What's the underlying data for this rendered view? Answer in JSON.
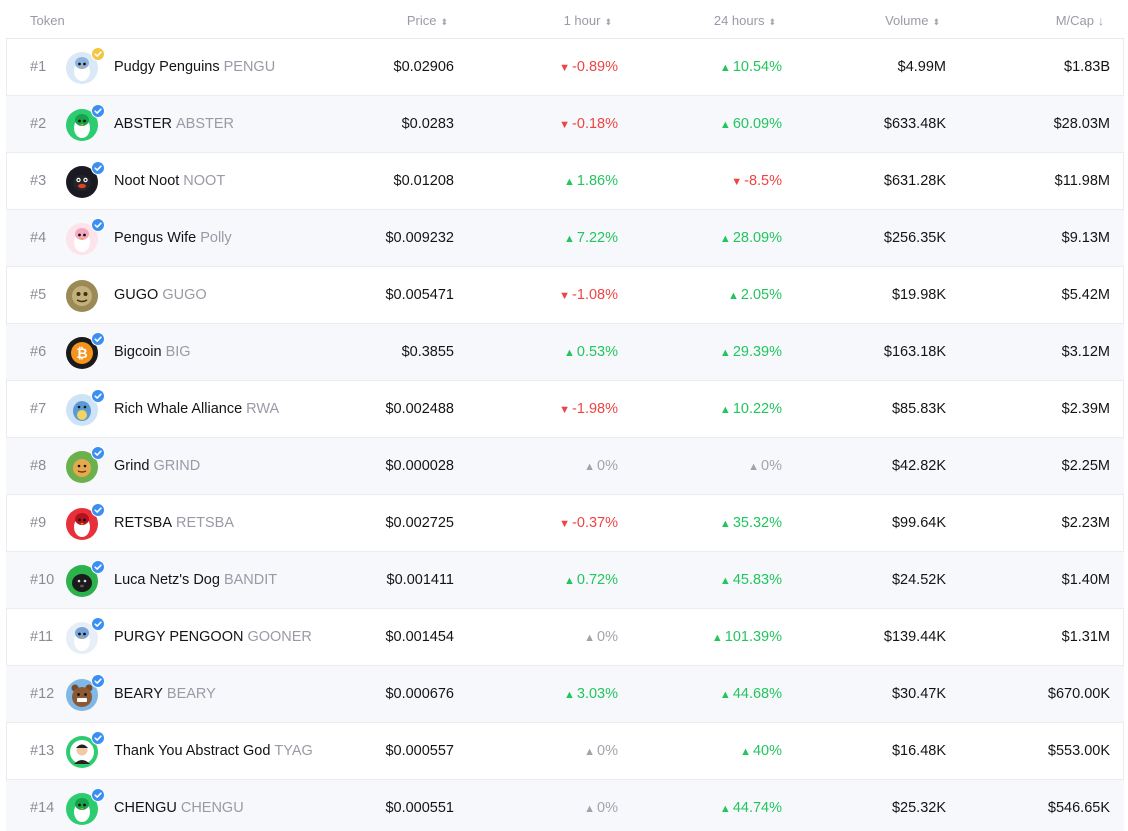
{
  "header": {
    "token": "Token",
    "price": "Price",
    "h1": "1 hour",
    "h24": "24 hours",
    "volume": "Volume",
    "mcap": "M/Cap",
    "sort_icon": "⬍",
    "sort_active_icon": "↓"
  },
  "colors": {
    "up": "#22c55e",
    "down": "#ef4444",
    "flat": "#a3a3ad",
    "verified": "#3b8ff3",
    "verified_gold": "#f5c542"
  },
  "rows": [
    {
      "rank": "#1",
      "name": "Pudgy Penguins",
      "symbol": "PENGU",
      "price": "$0.02906",
      "h1": "-0.89%",
      "h1_dir": "down",
      "h24": "10.54%",
      "h24_dir": "up",
      "volume": "$4.99M",
      "mcap": "$1.83B",
      "avatar_icon": "penguin-icon",
      "avatar_bg": "#dbe8f7",
      "badge": "gold"
    },
    {
      "rank": "#2",
      "name": "ABSTER",
      "symbol": "ABSTER",
      "price": "$0.0283",
      "h1": "-0.18%",
      "h1_dir": "down",
      "h24": "60.09%",
      "h24_dir": "up",
      "volume": "$633.48K",
      "mcap": "$28.03M",
      "avatar_icon": "green-penguin-icon",
      "avatar_bg": "#2ecc71",
      "badge": "blue"
    },
    {
      "rank": "#3",
      "name": "Noot Noot",
      "symbol": "NOOT",
      "price": "$0.01208",
      "h1": "1.86%",
      "h1_dir": "up",
      "h24": "-8.5%",
      "h24_dir": "down",
      "volume": "$631.28K",
      "mcap": "$11.98M",
      "avatar_icon": "noot-penguin-icon",
      "avatar_bg": "#1a1a22",
      "badge": "blue"
    },
    {
      "rank": "#4",
      "name": "Pengus Wife",
      "symbol": "Polly",
      "price": "$0.009232",
      "h1": "7.22%",
      "h1_dir": "up",
      "h24": "28.09%",
      "h24_dir": "up",
      "volume": "$256.35K",
      "mcap": "$9.13M",
      "avatar_icon": "pink-penguin-icon",
      "avatar_bg": "#fde3ea",
      "badge": "blue"
    },
    {
      "rank": "#5",
      "name": "GUGO",
      "symbol": "GUGO",
      "price": "$0.005471",
      "h1": "-1.08%",
      "h1_dir": "down",
      "h24": "2.05%",
      "h24_dir": "up",
      "volume": "$19.98K",
      "mcap": "$5.42M",
      "avatar_icon": "gugo-icon",
      "avatar_bg": "#9b8a55",
      "badge": "none"
    },
    {
      "rank": "#6",
      "name": "Bigcoin",
      "symbol": "BIG",
      "price": "$0.3855",
      "h1": "0.53%",
      "h1_dir": "up",
      "h24": "29.39%",
      "h24_dir": "up",
      "volume": "$163.18K",
      "mcap": "$3.12M",
      "avatar_icon": "bitcoin-icon",
      "avatar_bg": "#1a1a1a",
      "badge": "blue"
    },
    {
      "rank": "#7",
      "name": "Rich Whale Alliance",
      "symbol": "RWA",
      "price": "$0.002488",
      "h1": "-1.98%",
      "h1_dir": "down",
      "h24": "10.22%",
      "h24_dir": "up",
      "volume": "$85.83K",
      "mcap": "$2.39M",
      "avatar_icon": "whale-icon",
      "avatar_bg": "#cfe3f7",
      "badge": "blue"
    },
    {
      "rank": "#8",
      "name": "Grind",
      "symbol": "GRIND",
      "price": "$0.000028",
      "h1": "0%",
      "h1_dir": "flat",
      "h24": "0%",
      "h24_dir": "flat",
      "volume": "$42.82K",
      "mcap": "$2.25M",
      "avatar_icon": "grind-character-icon",
      "avatar_bg": "#6ab04c",
      "badge": "blue"
    },
    {
      "rank": "#9",
      "name": "RETSBA",
      "symbol": "RETSBA",
      "price": "$0.002725",
      "h1": "-0.37%",
      "h1_dir": "down",
      "h24": "35.32%",
      "h24_dir": "up",
      "volume": "$99.64K",
      "mcap": "$2.23M",
      "avatar_icon": "red-penguin-icon",
      "avatar_bg": "#e8303a",
      "badge": "blue"
    },
    {
      "rank": "#10",
      "name": "Luca Netz's Dog",
      "symbol": "BANDIT",
      "price": "$0.001411",
      "h1": "0.72%",
      "h1_dir": "up",
      "h24": "45.83%",
      "h24_dir": "up",
      "volume": "$24.52K",
      "mcap": "$1.40M",
      "avatar_icon": "dog-icon",
      "avatar_bg": "#2bb24c",
      "badge": "blue"
    },
    {
      "rank": "#11",
      "name": "PURGY PENGOON",
      "symbol": "GOONER",
      "price": "$0.001454",
      "h1": "0%",
      "h1_dir": "flat",
      "h24": "101.39%",
      "h24_dir": "up",
      "volume": "$139.44K",
      "mcap": "$1.31M",
      "avatar_icon": "purgy-penguin-icon",
      "avatar_bg": "#e8eef8",
      "badge": "blue"
    },
    {
      "rank": "#12",
      "name": "BEARY",
      "symbol": "BEARY",
      "price": "$0.000676",
      "h1": "3.03%",
      "h1_dir": "up",
      "h24": "44.68%",
      "h24_dir": "up",
      "volume": "$30.47K",
      "mcap": "$670.00K",
      "avatar_icon": "bear-icon",
      "avatar_bg": "#7fb8e6",
      "badge": "blue"
    },
    {
      "rank": "#13",
      "name": "Thank You Abstract God",
      "symbol": "TYAG",
      "price": "$0.000557",
      "h1": "0%",
      "h1_dir": "flat",
      "h24": "40%",
      "h24_dir": "up",
      "volume": "$16.48K",
      "mcap": "$553.00K",
      "avatar_icon": "portrait-icon",
      "avatar_bg": "#2ecc71",
      "badge": "blue"
    },
    {
      "rank": "#14",
      "name": "CHENGU",
      "symbol": "CHENGU",
      "price": "$0.000551",
      "h1": "0%",
      "h1_dir": "flat",
      "h24": "44.74%",
      "h24_dir": "up",
      "volume": "$25.32K",
      "mcap": "$546.65K",
      "avatar_icon": "green-penguin-icon",
      "avatar_bg": "#2ecc71",
      "badge": "blue"
    }
  ]
}
